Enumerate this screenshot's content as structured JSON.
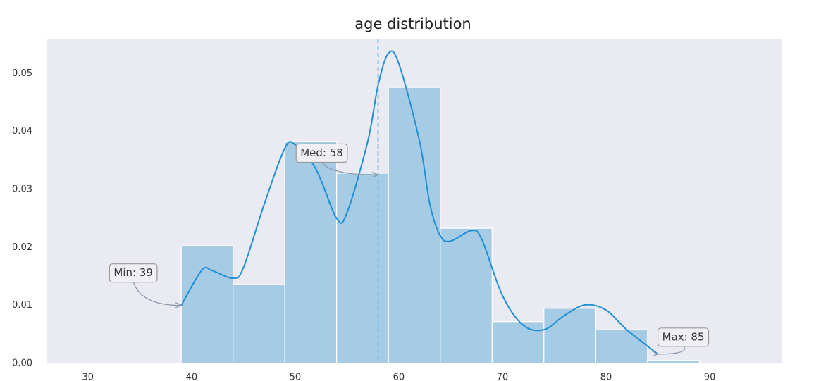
{
  "chart_data": {
    "type": "histogram",
    "title": "age distribution",
    "bins": [
      39,
      44,
      49,
      54,
      59,
      64,
      69,
      74,
      79,
      84,
      89
    ],
    "values": [
      0.0203,
      0.0136,
      0.0383,
      0.0328,
      0.0476,
      0.0233,
      0.0072,
      0.0095,
      0.0058,
      0.0005
    ],
    "color": "#a6cbe4",
    "kde": {
      "color": "#1f8fd6",
      "x": [
        39,
        41,
        42,
        44,
        45,
        47,
        49,
        50,
        52,
        54,
        55,
        57,
        58,
        59,
        60,
        62,
        63,
        64,
        65,
        67,
        68,
        70,
        72,
        74,
        76,
        78,
        80,
        82,
        85
      ],
      "values": [
        0.01,
        0.0161,
        0.016,
        0.0147,
        0.0165,
        0.0274,
        0.0371,
        0.0377,
        0.0335,
        0.025,
        0.026,
        0.0383,
        0.048,
        0.0535,
        0.0517,
        0.0383,
        0.0274,
        0.022,
        0.0211,
        0.0229,
        0.0214,
        0.0117,
        0.0066,
        0.0058,
        0.0083,
        0.0101,
        0.0092,
        0.0058,
        0.0016
      ]
    },
    "median": 58,
    "annotations": [
      {
        "text": "Min: 39",
        "x": 39,
        "y": 0.01
      },
      {
        "text": "Med: 58",
        "x": 58,
        "y": 0.0325
      },
      {
        "text": "Max: 85",
        "x": 85,
        "y": 0.0016
      }
    ],
    "xlim": [
      26,
      97
    ],
    "ylim": [
      0,
      0.056
    ],
    "xticks": [
      30,
      40,
      50,
      60,
      70,
      80,
      90
    ],
    "yticks": [
      {
        "value": 0,
        "label": "0.00"
      },
      {
        "value": 0.01,
        "label": "0.01"
      },
      {
        "value": 0.02,
        "label": "0.02"
      },
      {
        "value": 0.03,
        "label": "0.03"
      },
      {
        "value": 0.04,
        "label": "0.04"
      },
      {
        "value": 0.05,
        "label": "0.05"
      }
    ]
  }
}
